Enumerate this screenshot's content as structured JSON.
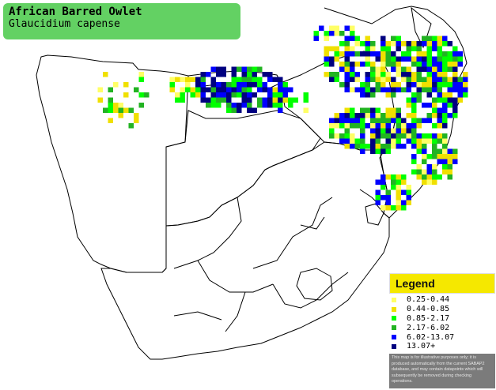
{
  "title": {
    "species": "African Barred Owlet",
    "latin": "Glaucidium capense"
  },
  "legend": {
    "heading": "Legend",
    "items": [
      {
        "label": "0.25-0.44",
        "color": "#ffff66"
      },
      {
        "label": "0.44-0.85",
        "color": "#f0e000"
      },
      {
        "label": "0.85-2.17",
        "color": "#00ff00"
      },
      {
        "label": "2.17-6.02",
        "color": "#22b322"
      },
      {
        "label": "6.02-13.07",
        "color": "#0000ff"
      },
      {
        "label": "13.07+",
        "color": "#000080"
      }
    ],
    "note": "This map is for illustrative purposes only; it is produced automatically from the current SABAP2 database, and may contain datapoints which will subsequently be removed during checking operations."
  },
  "colors": {
    "title_bg": "#63d163",
    "legend_header_bg": "#f5e800",
    "note_bg": "#7b7b7b",
    "border": "#000000"
  }
}
